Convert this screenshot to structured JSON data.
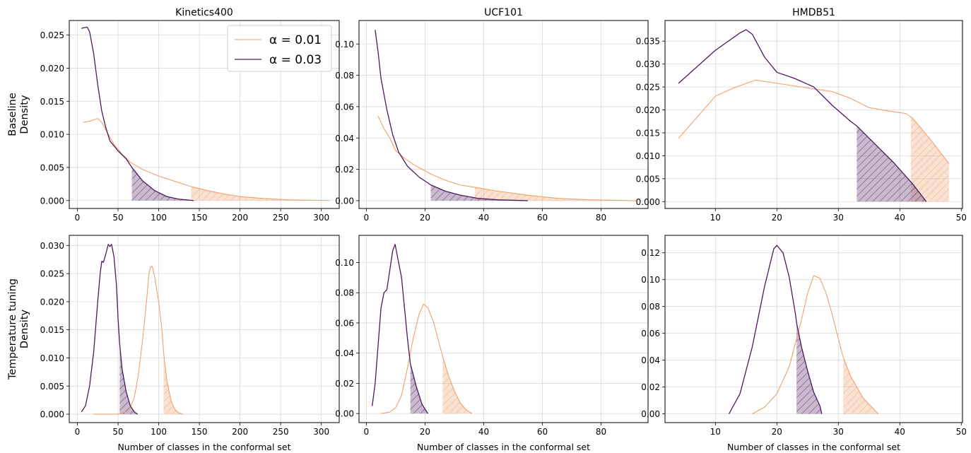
{
  "figure": {
    "row_labels": [
      "Baseline\nDensity",
      "Temperature tuning\nDensity"
    ],
    "xlabel": "Number of classes in the conformal set"
  },
  "legend": {
    "entries": [
      "α = 0.01",
      "α = 0.03"
    ],
    "placement": "upper-right of first panel"
  },
  "colors": {
    "alpha_001": "#f0a06a",
    "alpha_003": "#4b1a5e",
    "grid": "#d9d9d9"
  },
  "chart_data": [
    {
      "type": "line",
      "title": "Kinetics400",
      "row": 0,
      "col": 0,
      "xlim": [
        -10,
        322
      ],
      "ylim": [
        -0.0012,
        0.0272
      ],
      "xticks": [
        0,
        50,
        100,
        150,
        200,
        250,
        300
      ],
      "yticks": [
        0.0,
        0.005,
        0.01,
        0.015,
        0.02,
        0.025
      ],
      "ytick_decimals": 3,
      "grid": true,
      "series": [
        {
          "name": "α = 0.01",
          "shade_from": 140,
          "points": [
            [
              7,
              0.0118
            ],
            [
              15,
              0.012
            ],
            [
              25,
              0.0124
            ],
            [
              30,
              0.0118
            ],
            [
              38,
              0.01
            ],
            [
              45,
              0.0085
            ],
            [
              55,
              0.007
            ],
            [
              65,
              0.0058
            ],
            [
              80,
              0.0047
            ],
            [
              100,
              0.0037
            ],
            [
              120,
              0.0029
            ],
            [
              140,
              0.0021
            ],
            [
              160,
              0.0015
            ],
            [
              180,
              0.001
            ],
            [
              200,
              0.0006
            ],
            [
              230,
              0.0003
            ],
            [
              260,
              0.0001
            ],
            [
              310,
              0.0
            ]
          ]
        },
        {
          "name": "α = 0.03",
          "shade_from": 67,
          "points": [
            [
              5,
              0.026
            ],
            [
              8,
              0.0261
            ],
            [
              12,
              0.0262
            ],
            [
              15,
              0.0255
            ],
            [
              20,
              0.0222
            ],
            [
              25,
              0.0175
            ],
            [
              30,
              0.0135
            ],
            [
              35,
              0.011
            ],
            [
              40,
              0.009
            ],
            [
              50,
              0.0075
            ],
            [
              60,
              0.0063
            ],
            [
              67,
              0.005
            ],
            [
              80,
              0.003
            ],
            [
              95,
              0.0015
            ],
            [
              110,
              0.0006
            ],
            [
              125,
              0.0002
            ],
            [
              143,
              0.0
            ]
          ]
        }
      ]
    },
    {
      "type": "line",
      "title": "UCF101",
      "row": 0,
      "col": 1,
      "xlim": [
        -2.5,
        96
      ],
      "ylim": [
        -0.005,
        0.115
      ],
      "xticks": [
        0,
        20,
        40,
        60,
        80
      ],
      "yticks": [
        0.0,
        0.02,
        0.04,
        0.06,
        0.08,
        0.1
      ],
      "ytick_decimals": 2,
      "grid": true,
      "series": [
        {
          "name": "α = 0.01",
          "shade_from": 37,
          "points": [
            [
              4,
              0.054
            ],
            [
              6,
              0.046
            ],
            [
              8,
              0.04
            ],
            [
              10,
              0.032
            ],
            [
              13,
              0.027
            ],
            [
              17,
              0.022
            ],
            [
              22,
              0.017
            ],
            [
              27,
              0.013
            ],
            [
              32,
              0.01
            ],
            [
              37,
              0.0085
            ],
            [
              45,
              0.006
            ],
            [
              55,
              0.0035
            ],
            [
              65,
              0.0015
            ],
            [
              75,
              0.0006
            ],
            [
              85,
              0.0002
            ],
            [
              92,
              0.0
            ]
          ]
        },
        {
          "name": "α = 0.03",
          "shade_from": 22,
          "points": [
            [
              3,
              0.109
            ],
            [
              4,
              0.095
            ],
            [
              5,
              0.078
            ],
            [
              7,
              0.058
            ],
            [
              9,
              0.042
            ],
            [
              11,
              0.031
            ],
            [
              14,
              0.022
            ],
            [
              18,
              0.015
            ],
            [
              22,
              0.01
            ],
            [
              27,
              0.006
            ],
            [
              32,
              0.0035
            ],
            [
              38,
              0.0015
            ],
            [
              45,
              0.0005
            ],
            [
              55,
              0.0
            ]
          ]
        }
      ]
    },
    {
      "type": "line",
      "title": "HMDB51",
      "row": 0,
      "col": 2,
      "xlim": [
        1.8,
        50.2
      ],
      "ylim": [
        -0.0015,
        0.0395
      ],
      "xticks": [
        10,
        20,
        30,
        40,
        50
      ],
      "yticks": [
        0.0,
        0.005,
        0.01,
        0.015,
        0.02,
        0.025,
        0.03,
        0.035
      ],
      "ytick_decimals": 3,
      "grid": true,
      "series": [
        {
          "name": "α = 0.01",
          "shade_from": 41.8,
          "points": [
            [
              4,
              0.0138
            ],
            [
              10,
              0.023
            ],
            [
              13,
              0.0248
            ],
            [
              16.5,
              0.0265
            ],
            [
              20,
              0.0258
            ],
            [
              25,
              0.0248
            ],
            [
              29,
              0.024
            ],
            [
              32,
              0.0225
            ],
            [
              35,
              0.0205
            ],
            [
              38,
              0.0198
            ],
            [
              41,
              0.0192
            ],
            [
              42,
              0.0183
            ],
            [
              45,
              0.0135
            ],
            [
              48,
              0.0083
            ]
          ]
        },
        {
          "name": "α = 0.03",
          "shade_from": 33,
          "points": [
            [
              4,
              0.0258
            ],
            [
              10,
              0.033
            ],
            [
              14,
              0.0368
            ],
            [
              15,
              0.0375
            ],
            [
              16,
              0.0365
            ],
            [
              18,
              0.0315
            ],
            [
              20,
              0.0282
            ],
            [
              23,
              0.0268
            ],
            [
              26,
              0.025
            ],
            [
              29,
              0.021
            ],
            [
              32,
              0.0175
            ],
            [
              33,
              0.0165
            ],
            [
              36,
              0.0125
            ],
            [
              39,
              0.0085
            ],
            [
              42,
              0.004
            ],
            [
              44.3,
              0.0
            ]
          ]
        }
      ]
    },
    {
      "type": "line",
      "title": "",
      "row": 1,
      "col": 0,
      "xlim": [
        -10,
        322
      ],
      "ylim": [
        -0.0015,
        0.0318
      ],
      "xticks": [
        0,
        50,
        100,
        150,
        200,
        250,
        300
      ],
      "yticks": [
        0.0,
        0.005,
        0.01,
        0.015,
        0.02,
        0.025,
        0.03
      ],
      "ytick_decimals": 3,
      "grid": true,
      "series": [
        {
          "name": "α = 0.01",
          "shade_from": 106,
          "points": [
            [
              20,
              0.0
            ],
            [
              50,
              0.0
            ],
            [
              60,
              0.0004
            ],
            [
              65,
              0.0012
            ],
            [
              70,
              0.003
            ],
            [
              75,
              0.007
            ],
            [
              80,
              0.013
            ],
            [
              85,
              0.02
            ],
            [
              88,
              0.025
            ],
            [
              90,
              0.0262
            ],
            [
              92,
              0.0263
            ],
            [
              95,
              0.0245
            ],
            [
              100,
              0.02
            ],
            [
              104,
              0.015
            ],
            [
              106,
              0.011
            ],
            [
              110,
              0.006
            ],
            [
              115,
              0.0025
            ],
            [
              120,
              0.0008
            ],
            [
              125,
              0.0002
            ],
            [
              130,
              0.0
            ]
          ]
        },
        {
          "name": "α = 0.03",
          "shade_from": 52,
          "points": [
            [
              5,
              0.0004
            ],
            [
              10,
              0.0015
            ],
            [
              15,
              0.005
            ],
            [
              20,
              0.011
            ],
            [
              25,
              0.02
            ],
            [
              28,
              0.025
            ],
            [
              30,
              0.0272
            ],
            [
              32,
              0.027
            ],
            [
              35,
              0.0285
            ],
            [
              38,
              0.0302
            ],
            [
              40,
              0.0298
            ],
            [
              42,
              0.0302
            ],
            [
              45,
              0.028
            ],
            [
              48,
              0.023
            ],
            [
              50,
              0.017
            ],
            [
              52,
              0.0125
            ],
            [
              55,
              0.008
            ],
            [
              60,
              0.004
            ],
            [
              65,
              0.0015
            ],
            [
              70,
              0.0004
            ],
            [
              74,
              0.0
            ]
          ]
        }
      ]
    },
    {
      "type": "line",
      "title": "",
      "row": 1,
      "col": 1,
      "xlim": [
        -2.5,
        96
      ],
      "ylim": [
        -0.006,
        0.118
      ],
      "xticks": [
        0,
        20,
        40,
        60,
        80
      ],
      "yticks": [
        0.0,
        0.02,
        0.04,
        0.06,
        0.08,
        0.1
      ],
      "ytick_decimals": 2,
      "grid": true,
      "series": [
        {
          "name": "α = 0.01",
          "shade_from": 26,
          "points": [
            [
              5,
              0.0
            ],
            [
              8,
              0.001
            ],
            [
              10,
              0.004
            ],
            [
              12,
              0.012
            ],
            [
              14,
              0.03
            ],
            [
              16,
              0.05
            ],
            [
              18,
              0.066
            ],
            [
              19.5,
              0.0725
            ],
            [
              21,
              0.07
            ],
            [
              23,
              0.06
            ],
            [
              25,
              0.045
            ],
            [
              26,
              0.038
            ],
            [
              28,
              0.025
            ],
            [
              30,
              0.015
            ],
            [
              32,
              0.007
            ],
            [
              34,
              0.0025
            ],
            [
              36,
              0.0
            ]
          ]
        },
        {
          "name": "α = 0.03",
          "shade_from": 15,
          "points": [
            [
              2,
              0.005
            ],
            [
              3,
              0.02
            ],
            [
              4,
              0.045
            ],
            [
              5,
              0.07
            ],
            [
              6,
              0.08
            ],
            [
              7,
              0.082
            ],
            [
              8,
              0.095
            ],
            [
              9,
              0.108
            ],
            [
              9.8,
              0.112
            ],
            [
              11,
              0.1
            ],
            [
              12,
              0.09
            ],
            [
              13,
              0.07
            ],
            [
              14,
              0.05
            ],
            [
              15,
              0.033
            ],
            [
              17,
              0.018
            ],
            [
              19,
              0.006
            ],
            [
              21,
              0.0
            ]
          ]
        }
      ]
    },
    {
      "type": "line",
      "title": "",
      "row": 1,
      "col": 2,
      "xlim": [
        1.8,
        50.2
      ],
      "ylim": [
        -0.0065,
        0.133
      ],
      "xticks": [
        10,
        20,
        30,
        40,
        50
      ],
      "yticks": [
        0.0,
        0.02,
        0.04,
        0.06,
        0.08,
        0.1,
        0.12
      ],
      "ytick_decimals": 2,
      "grid": true,
      "series": [
        {
          "name": "α = 0.01",
          "shade_from": 30.8,
          "points": [
            [
              16,
              0.0
            ],
            [
              18,
              0.005
            ],
            [
              20,
              0.015
            ],
            [
              22,
              0.035
            ],
            [
              24,
              0.07
            ],
            [
              25,
              0.09
            ],
            [
              26,
              0.103
            ],
            [
              27,
              0.101
            ],
            [
              28,
              0.09
            ],
            [
              29,
              0.074
            ],
            [
              30,
              0.056
            ],
            [
              30.8,
              0.042
            ],
            [
              32,
              0.028
            ],
            [
              34,
              0.012
            ],
            [
              36.5,
              0.0
            ]
          ]
        },
        {
          "name": "α = 0.03",
          "shade_from": 23.2,
          "points": [
            [
              12.2,
              0.0
            ],
            [
              14,
              0.015
            ],
            [
              16,
              0.05
            ],
            [
              18,
              0.095
            ],
            [
              19.5,
              0.123
            ],
            [
              20,
              0.1255
            ],
            [
              21,
              0.12
            ],
            [
              22,
              0.102
            ],
            [
              23,
              0.075
            ],
            [
              23.2,
              0.068
            ],
            [
              24,
              0.05
            ],
            [
              25,
              0.032
            ],
            [
              26,
              0.016
            ],
            [
              27,
              0.006
            ],
            [
              27.3,
              0.0
            ]
          ]
        }
      ]
    }
  ]
}
